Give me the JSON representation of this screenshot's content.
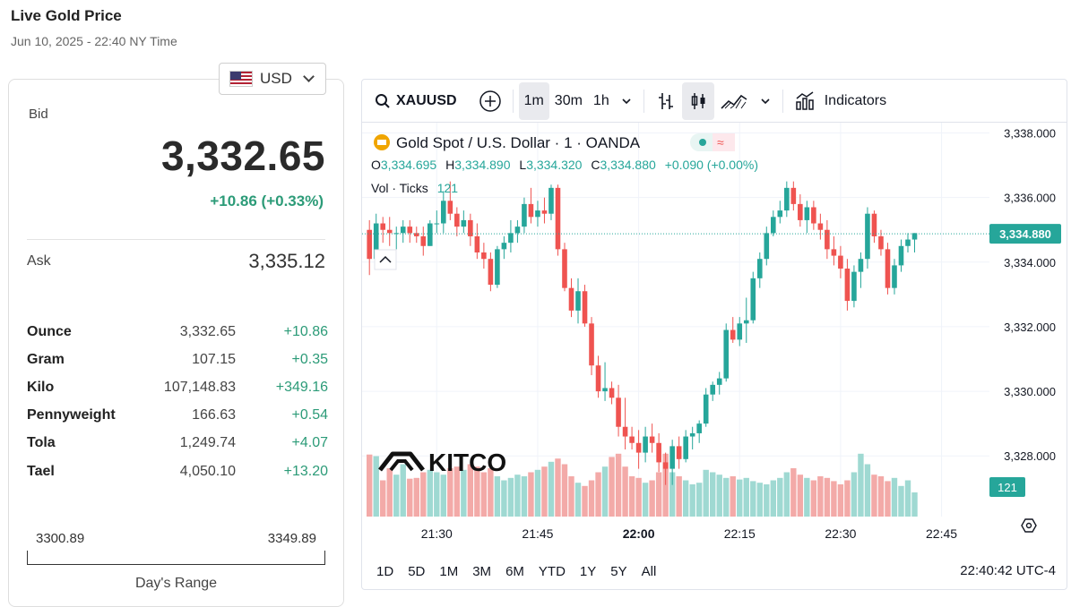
{
  "page": {
    "title": "Live Gold Price",
    "subtitle": "Jun 10, 2025 - 22:40 NY Time"
  },
  "currency": {
    "selected": "USD",
    "flag_icon": "us-flag-icon"
  },
  "quote": {
    "bid_label": "Bid",
    "bid": "3,332.65",
    "bid_change": "+10.86 (+0.33%)",
    "ask_label": "Ask",
    "ask": "3,335.12",
    "change_color": "#2c9b78"
  },
  "units": [
    {
      "name": "Ounce",
      "price": "3,332.65",
      "change": "+10.86"
    },
    {
      "name": "Gram",
      "price": "107.15",
      "change": "+0.35"
    },
    {
      "name": "Kilo",
      "price": "107,148.83",
      "change": "+349.16"
    },
    {
      "name": "Pennyweight",
      "price": "166.63",
      "change": "+0.54"
    },
    {
      "name": "Tola",
      "price": "1,249.74",
      "change": "+4.07"
    },
    {
      "name": "Tael",
      "price": "4,050.10",
      "change": "+13.20"
    }
  ],
  "days_range": {
    "low": "3300.89",
    "high": "3349.89",
    "label": "Day's Range"
  },
  "toolbar": {
    "symbol": "XAUUSD",
    "intervals": [
      "1m",
      "30m",
      "1h"
    ],
    "active_interval": "1m",
    "indicators_label": "Indicators"
  },
  "bottom_bar": {
    "ranges": [
      "1D",
      "5D",
      "1M",
      "3M",
      "6M",
      "YTD",
      "1Y",
      "5Y",
      "All"
    ],
    "clock": "22:40:42 UTC-4"
  },
  "chart_data": {
    "type": "candlestick",
    "title": "Gold Spot / U.S. Dollar · 1 · OANDA",
    "ohlc_legend": {
      "o_label": "O",
      "o": "3,334.695",
      "h_label": "H",
      "h": "3,334.890",
      "l_label": "L",
      "l": "3,334.320",
      "c_label": "C",
      "c": "3,334.880",
      "change": "+0.090 (+0.00%)"
    },
    "volume_legend": {
      "label": "Vol · Ticks",
      "value": "121"
    },
    "last_price_label": "3,334.880",
    "last_price": 3334.88,
    "last_volume_label": "121",
    "ylim": [
      3326.12,
      3338.32
    ],
    "y_ticks": [
      3338.0,
      3336.0,
      3334.0,
      3332.0,
      3330.0,
      3328.0
    ],
    "y_tick_labels": [
      "3,338.000",
      "3,336.000",
      "3,334.000",
      "3,332.000",
      "3,330.000",
      "3,328.000"
    ],
    "x_ticks": [
      {
        "label": "21:30",
        "minute": 10
      },
      {
        "label": "21:45",
        "minute": 25
      },
      {
        "label": "22:00",
        "minute": 40
      },
      {
        "label": "22:15",
        "minute": 55
      },
      {
        "label": "22:30",
        "minute": 70
      },
      {
        "label": "22:45",
        "minute": 85
      }
    ],
    "colors": {
      "up": "#26a69a",
      "down": "#ef5350",
      "up_volume": "#9fd9d2",
      "down_volume": "#f3aaa8",
      "grid": "#f0f3fa"
    },
    "watermark": "KITCO",
    "candles": [
      [
        3335.0,
        3335.3,
        3333.6,
        3334.1,
        0.77
      ],
      [
        3334.1,
        3335.5,
        3333.9,
        3335.2,
        0.75
      ],
      [
        3335.2,
        3335.4,
        3334.6,
        3335.0,
        0.45
      ],
      [
        3335.0,
        3335.4,
        3334.5,
        3334.9,
        0.6
      ],
      [
        3334.9,
        3335.1,
        3334.4,
        3334.9,
        0.52
      ],
      [
        3334.9,
        3335.3,
        3334.6,
        3335.1,
        0.65
      ],
      [
        3335.1,
        3335.3,
        3334.6,
        3334.9,
        0.47
      ],
      [
        3334.9,
        3335.1,
        3334.6,
        3334.8,
        0.48
      ],
      [
        3334.8,
        3335.1,
        3334.2,
        3334.5,
        0.55
      ],
      [
        3334.5,
        3335.3,
        3334.5,
        3335.2,
        0.58
      ],
      [
        3335.2,
        3335.6,
        3334.9,
        3335.2,
        0.55
      ],
      [
        3335.2,
        3336.2,
        3334.9,
        3335.9,
        0.52
      ],
      [
        3335.9,
        3336.5,
        3335.3,
        3335.5,
        0.6
      ],
      [
        3335.5,
        3335.7,
        3334.8,
        3335.1,
        0.62
      ],
      [
        3335.1,
        3335.6,
        3334.9,
        3335.3,
        0.58
      ],
      [
        3335.3,
        3335.5,
        3334.5,
        3334.8,
        0.65
      ],
      [
        3334.8,
        3335.2,
        3334.1,
        3334.3,
        0.62
      ],
      [
        3334.3,
        3334.6,
        3333.8,
        3334.1,
        0.55
      ],
      [
        3334.1,
        3334.3,
        3333.1,
        3333.3,
        0.6
      ],
      [
        3333.3,
        3334.5,
        3333.2,
        3334.4,
        0.5
      ],
      [
        3334.4,
        3334.8,
        3334.1,
        3334.6,
        0.45
      ],
      [
        3334.6,
        3335.3,
        3334.3,
        3334.9,
        0.48
      ],
      [
        3334.9,
        3335.3,
        3334.6,
        3335.1,
        0.52
      ],
      [
        3335.1,
        3336.0,
        3334.9,
        3335.8,
        0.5
      ],
      [
        3335.8,
        3336.3,
        3335.2,
        3335.4,
        0.55
      ],
      [
        3335.4,
        3335.9,
        3335.1,
        3335.6,
        0.58
      ],
      [
        3335.6,
        3336.0,
        3335.2,
        3335.5,
        0.62
      ],
      [
        3335.5,
        3336.4,
        3335.3,
        3336.3,
        0.68
      ],
      [
        3336.3,
        3336.4,
        3334.2,
        3334.4,
        0.72
      ],
      [
        3334.4,
        3334.6,
        3333.1,
        3333.2,
        0.65
      ],
      [
        3333.2,
        3333.5,
        3332.3,
        3332.5,
        0.5
      ],
      [
        3332.5,
        3333.5,
        3332.1,
        3333.1,
        0.42
      ],
      [
        3333.1,
        3333.3,
        3332.0,
        3332.1,
        0.38
      ],
      [
        3332.1,
        3332.3,
        3330.5,
        3330.8,
        0.45
      ],
      [
        3330.8,
        3331.1,
        3329.8,
        3330.0,
        0.55
      ],
      [
        3330.0,
        3330.9,
        3329.7,
        3330.1,
        0.62
      ],
      [
        3330.1,
        3330.3,
        3329.6,
        3329.8,
        0.74
      ],
      [
        3329.8,
        3330.2,
        3328.6,
        3328.9,
        0.78
      ],
      [
        3328.9,
        3329.8,
        3328.2,
        3328.6,
        0.62
      ],
      [
        3328.6,
        3328.9,
        3328.2,
        3328.4,
        0.5
      ],
      [
        3328.4,
        3328.8,
        3327.6,
        3328.1,
        0.48
      ],
      [
        3328.1,
        3328.9,
        3327.8,
        3328.6,
        0.42
      ],
      [
        3328.6,
        3329.0,
        3328.1,
        3328.4,
        0.45
      ],
      [
        3328.4,
        3328.7,
        3327.5,
        3327.8,
        0.55
      ],
      [
        3327.8,
        3328.1,
        3327.1,
        3327.6,
        0.78
      ],
      [
        3327.6,
        3328.5,
        3327.1,
        3328.3,
        0.55
      ],
      [
        3328.3,
        3328.6,
        3327.6,
        3327.9,
        0.5
      ],
      [
        3327.9,
        3328.8,
        3327.8,
        3328.6,
        0.45
      ],
      [
        3328.6,
        3328.9,
        3328.2,
        3328.7,
        0.4
      ],
      [
        3328.7,
        3329.1,
        3328.4,
        3329.0,
        0.42
      ],
      [
        3329.0,
        3330.1,
        3328.9,
        3329.9,
        0.58
      ],
      [
        3329.9,
        3330.3,
        3329.7,
        3330.2,
        0.55
      ],
      [
        3330.2,
        3330.6,
        3329.9,
        3330.4,
        0.52
      ],
      [
        3330.4,
        3332.1,
        3330.3,
        3331.9,
        0.48
      ],
      [
        3331.9,
        3332.3,
        3331.5,
        3331.6,
        0.5
      ],
      [
        3331.6,
        3332.3,
        3331.4,
        3332.1,
        0.46
      ],
      [
        3332.1,
        3332.9,
        3331.5,
        3332.2,
        0.48
      ],
      [
        3332.2,
        3333.7,
        3332.1,
        3333.5,
        0.44
      ],
      [
        3333.5,
        3334.3,
        3333.2,
        3334.1,
        0.42
      ],
      [
        3334.1,
        3335.1,
        3333.9,
        3334.9,
        0.4
      ],
      [
        3334.9,
        3335.6,
        3334.8,
        3335.4,
        0.45
      ],
      [
        3335.4,
        3335.9,
        3335.2,
        3335.6,
        0.48
      ],
      [
        3335.6,
        3336.5,
        3335.4,
        3336.3,
        0.55
      ],
      [
        3336.3,
        3336.5,
        3335.6,
        3335.8,
        0.6
      ],
      [
        3335.8,
        3336.1,
        3335.1,
        3335.3,
        0.52
      ],
      [
        3335.3,
        3335.9,
        3334.9,
        3335.7,
        0.48
      ],
      [
        3335.7,
        3335.9,
        3335.0,
        3335.2,
        0.45
      ],
      [
        3335.2,
        3335.5,
        3334.7,
        3335.0,
        0.5
      ],
      [
        3335.0,
        3335.3,
        3334.1,
        3334.4,
        0.48
      ],
      [
        3334.4,
        3334.8,
        3333.9,
        3334.2,
        0.44
      ],
      [
        3334.2,
        3334.5,
        3333.5,
        3333.8,
        0.4
      ],
      [
        3333.8,
        3334.1,
        3332.5,
        3332.8,
        0.45
      ],
      [
        3332.8,
        3333.9,
        3332.6,
        3333.7,
        0.55
      ],
      [
        3333.7,
        3334.3,
        3333.2,
        3334.1,
        0.78
      ],
      [
        3334.1,
        3335.7,
        3333.8,
        3335.5,
        0.65
      ],
      [
        3335.5,
        3335.6,
        3334.6,
        3334.8,
        0.52
      ],
      [
        3334.8,
        3335.0,
        3334.2,
        3334.4,
        0.5
      ],
      [
        3334.4,
        3334.6,
        3333.0,
        3333.2,
        0.44
      ],
      [
        3333.2,
        3334.1,
        3333.0,
        3333.9,
        0.48
      ],
      [
        3333.9,
        3334.7,
        3333.7,
        3334.5,
        0.38
      ],
      [
        3334.5,
        3334.9,
        3334.3,
        3334.7,
        0.45
      ],
      [
        3334.7,
        3334.9,
        3334.3,
        3334.9,
        0.3
      ]
    ]
  }
}
